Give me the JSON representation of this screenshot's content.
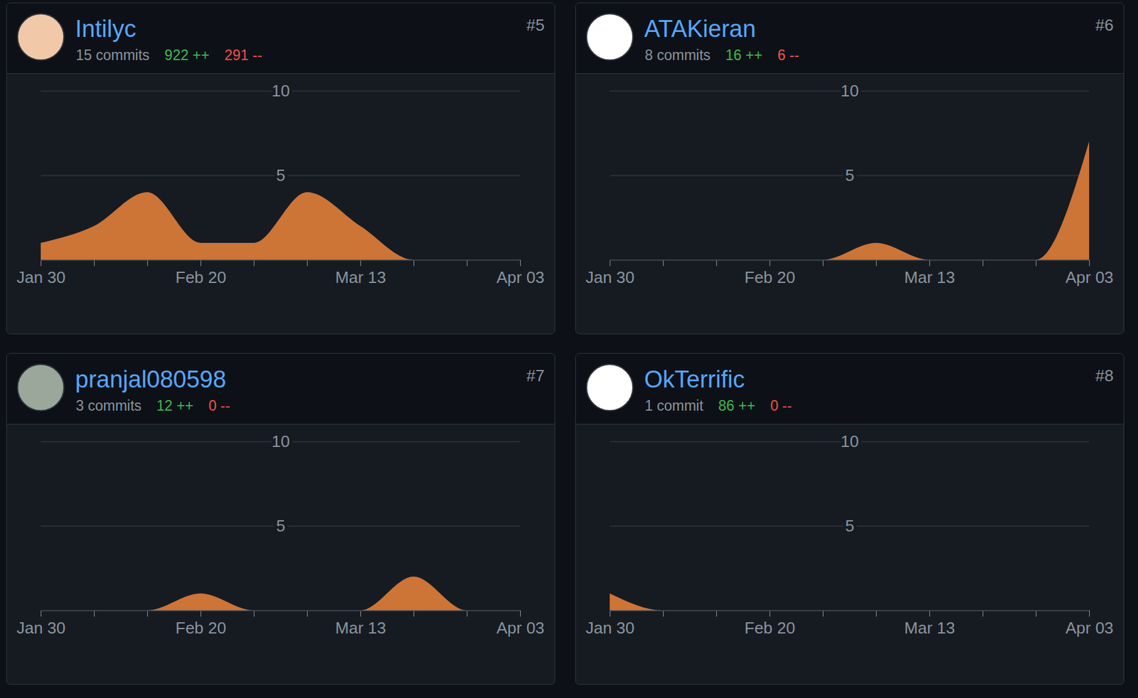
{
  "chart_data": [
    {
      "type": "area",
      "title": "Intilyc",
      "rank": "#5",
      "commits_label": "15 commits",
      "additions_label": "922 ++",
      "deletions_label": "291 --",
      "categories": [
        "Jan 30",
        null,
        null,
        "Feb 20",
        null,
        null,
        "Mar 13",
        null,
        null,
        "Apr 03"
      ],
      "values": [
        1,
        2,
        4,
        1,
        1,
        4,
        2,
        0,
        0,
        0
      ],
      "color": "#cd7437",
      "ylim": [
        0,
        10
      ],
      "yticks": [
        5,
        10
      ],
      "grid": true
    },
    {
      "type": "area",
      "title": "ATAKieran",
      "rank": "#6",
      "commits_label": "8 commits",
      "additions_label": "16 ++",
      "deletions_label": "6 --",
      "categories": [
        "Jan 30",
        null,
        null,
        "Feb 20",
        null,
        null,
        "Mar 13",
        null,
        null,
        "Apr 03"
      ],
      "values": [
        0,
        0,
        0,
        0,
        0,
        1,
        0,
        0,
        0,
        7
      ],
      "color": "#cd7437",
      "ylim": [
        0,
        10
      ],
      "yticks": [
        5,
        10
      ],
      "grid": true
    },
    {
      "type": "area",
      "title": "pranjal080598",
      "rank": "#7",
      "commits_label": "3 commits",
      "additions_label": "12 ++",
      "deletions_label": "0 --",
      "categories": [
        "Jan 30",
        null,
        null,
        "Feb 20",
        null,
        null,
        "Mar 13",
        null,
        null,
        "Apr 03"
      ],
      "values": [
        0,
        0,
        0,
        1,
        0,
        0,
        0,
        2,
        0,
        0
      ],
      "color": "#cd7437",
      "ylim": [
        0,
        10
      ],
      "yticks": [
        5,
        10
      ],
      "grid": true
    },
    {
      "type": "area",
      "title": "OkTerrific",
      "rank": "#8",
      "commits_label": "1 commit",
      "additions_label": "86 ++",
      "deletions_label": "0 --",
      "categories": [
        "Jan 30",
        null,
        null,
        "Feb 20",
        null,
        null,
        "Mar 13",
        null,
        null,
        "Apr 03"
      ],
      "values": [
        1,
        0,
        0,
        0,
        0,
        0,
        0,
        0,
        0,
        0
      ],
      "color": "#cd7437",
      "ylim": [
        0,
        10
      ],
      "yticks": [
        5,
        10
      ],
      "grid": true
    }
  ]
}
